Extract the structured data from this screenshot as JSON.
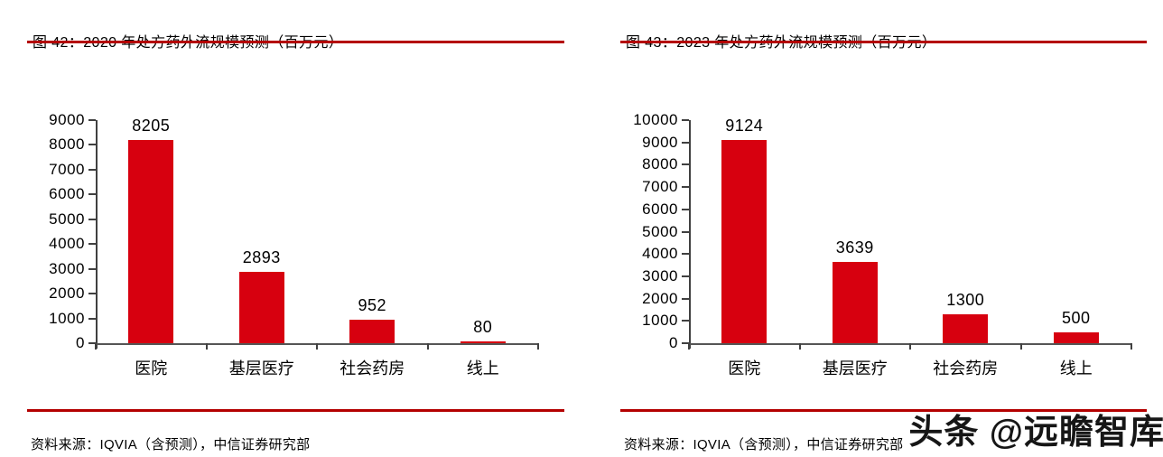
{
  "panels": [
    {
      "title": "图 42：2020 年处方药外流规模预测（百万元）",
      "source": "资料来源：IQVIA（含预测），中信证券研究部"
    },
    {
      "title": "图 43：2023 年处方药外流规模预测（百万元）",
      "source": "资料来源：IQVIA（含预测），中信证券研究部"
    }
  ],
  "chart_data": [
    {
      "type": "bar",
      "title": "2020 年处方药外流规模预测（百万元）",
      "categories": [
        "医院",
        "基层医疗",
        "社会药房",
        "线上"
      ],
      "values": [
        8205,
        2893,
        952,
        80
      ],
      "xlabel": "",
      "ylabel": "",
      "ylim": [
        0,
        9000
      ],
      "ytick_step": 1000,
      "grid": false,
      "legend": false,
      "bar_color": "#d7000f"
    },
    {
      "type": "bar",
      "title": "2023 年处方药外流规模预测（百万元）",
      "categories": [
        "医院",
        "基层医疗",
        "社会药房",
        "线上"
      ],
      "values": [
        9124,
        3639,
        1300,
        500
      ],
      "xlabel": "",
      "ylabel": "",
      "ylim": [
        0,
        10000
      ],
      "ytick_step": 1000,
      "grid": false,
      "legend": false,
      "bar_color": "#d7000f"
    }
  ],
  "watermark": {
    "text": "头条 @远瞻智库"
  },
  "colors": {
    "bar_red": "#d7000f",
    "rule_red": "#b40000",
    "axis_gray": "#404040",
    "text": "#000000",
    "background": "#ffffff"
  }
}
